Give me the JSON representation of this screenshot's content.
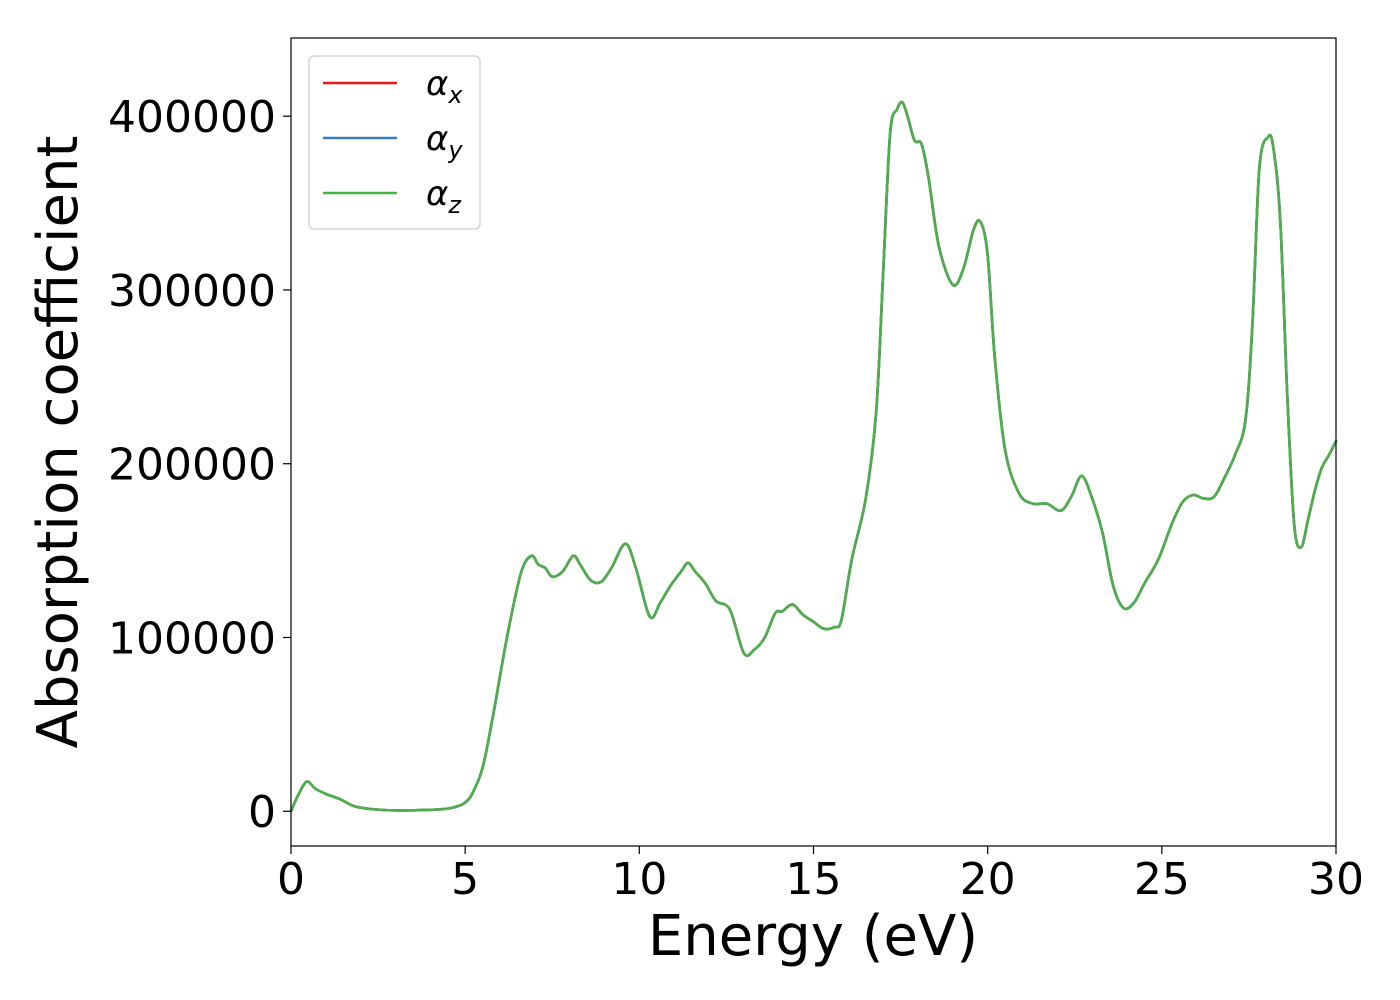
{
  "chart_data": {
    "type": "line",
    "xlabel": "Energy (eV)",
    "ylabel": "Absorption coefficient",
    "xlim": [
      0,
      30
    ],
    "ylim": [
      -20000,
      445000
    ],
    "x_ticks": [
      0,
      5,
      10,
      15,
      20,
      25,
      30
    ],
    "y_ticks": [
      0,
      100000,
      200000,
      300000,
      400000
    ],
    "grid": false,
    "legend_position": "top-left",
    "x": [
      0,
      0.2,
      0.45,
      0.7,
      1.0,
      1.4,
      1.8,
      2.2,
      2.6,
      3.0,
      3.5,
      4.0,
      4.5,
      4.8,
      5.0,
      5.2,
      5.5,
      5.8,
      6.2,
      6.6,
      6.9,
      7.1,
      7.3,
      7.5,
      7.8,
      8.1,
      8.3,
      8.6,
      8.9,
      9.2,
      9.6,
      9.9,
      10.3,
      10.6,
      10.9,
      11.2,
      11.4,
      11.6,
      11.9,
      12.2,
      12.6,
      13.0,
      13.3,
      13.6,
      13.9,
      14.1,
      14.4,
      14.7,
      15.0,
      15.3,
      15.6,
      15.8,
      16.1,
      16.5,
      16.8,
      17.0,
      17.2,
      17.4,
      17.55,
      17.7,
      17.9,
      18.1,
      18.3,
      18.6,
      19.0,
      19.3,
      19.6,
      19.8,
      20.0,
      20.2,
      20.5,
      20.9,
      21.3,
      21.7,
      22.1,
      22.4,
      22.7,
      23.0,
      23.3,
      23.6,
      23.9,
      24.2,
      24.5,
      24.9,
      25.3,
      25.6,
      25.9,
      26.2,
      26.5,
      26.8,
      27.1,
      27.4,
      27.6,
      27.8,
      28.05,
      28.2,
      28.4,
      28.6,
      28.8,
      29.0,
      29.2,
      29.4,
      29.6,
      29.8,
      30.0
    ],
    "series": [
      {
        "name": "αx",
        "color": "#e41a1c",
        "values": [
          0,
          9000,
          17000,
          13000,
          10000,
          7000,
          3000,
          1500,
          800,
          500,
          500,
          800,
          1500,
          3000,
          5000,
          10000,
          25000,
          55000,
          100000,
          137000,
          147000,
          142000,
          140000,
          135000,
          138000,
          147000,
          142000,
          133000,
          132000,
          140000,
          154000,
          140000,
          112000,
          120000,
          130000,
          138000,
          143000,
          138000,
          131000,
          121000,
          116000,
          91000,
          93000,
          100000,
          114000,
          115000,
          119000,
          113000,
          109000,
          105000,
          106000,
          110000,
          145000,
          180000,
          230000,
          310000,
          390000,
          404000,
          408000,
          400000,
          386000,
          384000,
          365000,
          325000,
          303000,
          312000,
          335000,
          339000,
          320000,
          262000,
          208000,
          183000,
          177000,
          177000,
          173000,
          181000,
          193000,
          180000,
          160000,
          130000,
          117000,
          120000,
          131000,
          145000,
          166000,
          178000,
          182000,
          180000,
          181000,
          192000,
          205000,
          225000,
          280000,
          370000,
          388000,
          382000,
          340000,
          240000,
          165000,
          152000,
          168000,
          185000,
          198000,
          205000,
          213000
        ]
      },
      {
        "name": "αy",
        "color": "#377eb8",
        "values": [
          0,
          9000,
          17000,
          13000,
          10000,
          7000,
          3000,
          1500,
          800,
          500,
          500,
          800,
          1500,
          3000,
          5000,
          10000,
          25000,
          55000,
          100000,
          137000,
          147000,
          142000,
          140000,
          135000,
          138000,
          147000,
          142000,
          133000,
          132000,
          140000,
          154000,
          140000,
          112000,
          120000,
          130000,
          138000,
          143000,
          138000,
          131000,
          121000,
          116000,
          91000,
          93000,
          100000,
          114000,
          115000,
          119000,
          113000,
          109000,
          105000,
          106000,
          110000,
          145000,
          180000,
          230000,
          310000,
          390000,
          404000,
          408000,
          400000,
          386000,
          384000,
          365000,
          325000,
          303000,
          312000,
          335000,
          339000,
          320000,
          262000,
          208000,
          183000,
          177000,
          177000,
          173000,
          181000,
          193000,
          180000,
          160000,
          130000,
          117000,
          120000,
          131000,
          145000,
          166000,
          178000,
          182000,
          180000,
          181000,
          192000,
          205000,
          225000,
          280000,
          370000,
          388000,
          382000,
          340000,
          240000,
          165000,
          152000,
          168000,
          185000,
          198000,
          205000,
          213000
        ]
      },
      {
        "name": "αz",
        "color": "#4daf4a",
        "values": [
          0,
          9000,
          17000,
          13000,
          10000,
          7000,
          3000,
          1500,
          800,
          500,
          500,
          800,
          1500,
          3000,
          5000,
          10000,
          25000,
          55000,
          100000,
          137000,
          147000,
          142000,
          140000,
          135000,
          138000,
          147000,
          142000,
          133000,
          132000,
          140000,
          154000,
          140000,
          112000,
          120000,
          130000,
          138000,
          143000,
          138000,
          131000,
          121000,
          116000,
          91000,
          93000,
          100000,
          114000,
          115000,
          119000,
          113000,
          109000,
          105000,
          106000,
          110000,
          145000,
          180000,
          230000,
          310000,
          390000,
          404000,
          408000,
          400000,
          386000,
          384000,
          365000,
          325000,
          303000,
          312000,
          335000,
          339000,
          320000,
          262000,
          208000,
          183000,
          177000,
          177000,
          173000,
          181000,
          193000,
          180000,
          160000,
          130000,
          117000,
          120000,
          131000,
          145000,
          166000,
          178000,
          182000,
          180000,
          181000,
          192000,
          205000,
          225000,
          280000,
          370000,
          388000,
          382000,
          340000,
          240000,
          165000,
          152000,
          168000,
          185000,
          198000,
          205000,
          213000
        ]
      }
    ],
    "legend": [
      {
        "symbol": "α",
        "sub": "x",
        "color": "#e41a1c"
      },
      {
        "symbol": "α",
        "sub": "y",
        "color": "#377eb8"
      },
      {
        "symbol": "α",
        "sub": "z",
        "color": "#4daf4a"
      }
    ]
  }
}
